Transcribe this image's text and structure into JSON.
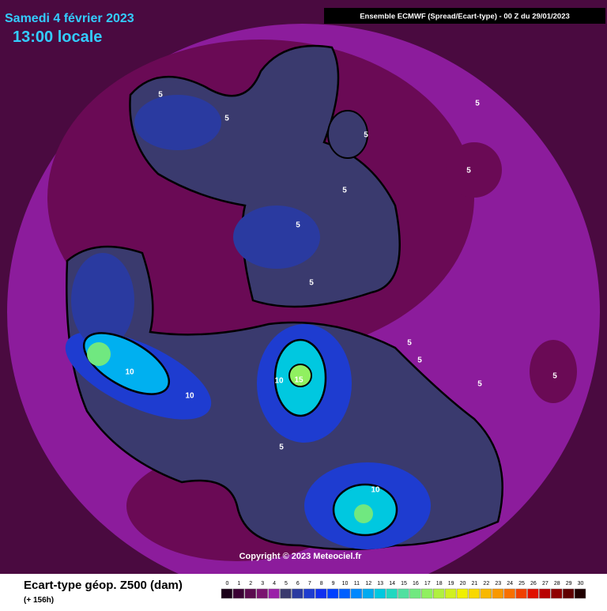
{
  "header": {
    "date": "Samedi 4 février 2023",
    "time": "13:00 locale",
    "model": "Ensemble ECMWF  (Spread/Ecart-type) - 00 Z du 29/01/2023"
  },
  "map": {
    "contour_labels": [
      5,
      5,
      5,
      5,
      5,
      5,
      5,
      5,
      5,
      5,
      5,
      5,
      5,
      10,
      10,
      10,
      15,
      10
    ],
    "copyright": "Copyright © 2023 Meteociel.fr"
  },
  "legend": {
    "title": "Ecart-type géop. Z500 (dam)",
    "lead": "(+ 156h)",
    "levels": [
      0,
      1,
      2,
      3,
      4,
      5,
      6,
      7,
      8,
      9,
      10,
      11,
      12,
      13,
      14,
      15,
      16,
      17,
      18,
      19,
      20,
      21,
      22,
      23,
      24,
      25,
      26,
      27,
      28,
      29,
      30
    ],
    "colors": [
      "#1a0018",
      "#3a0034",
      "#5a0a4e",
      "#7a1470",
      "#9a20a8",
      "#3a3a6e",
      "#2a3aa0",
      "#1e3cd0",
      "#1030f0",
      "#0040ff",
      "#0060ff",
      "#0088ff",
      "#00aaf0",
      "#00c8e0",
      "#20d8c0",
      "#50e0a0",
      "#70e880",
      "#90f060",
      "#b0f040",
      "#d0f020",
      "#f0f000",
      "#f8d800",
      "#f8b800",
      "#f89800",
      "#f87000",
      "#f04000",
      "#e01000",
      "#b80000",
      "#900000",
      "#600000",
      "#200000"
    ]
  }
}
